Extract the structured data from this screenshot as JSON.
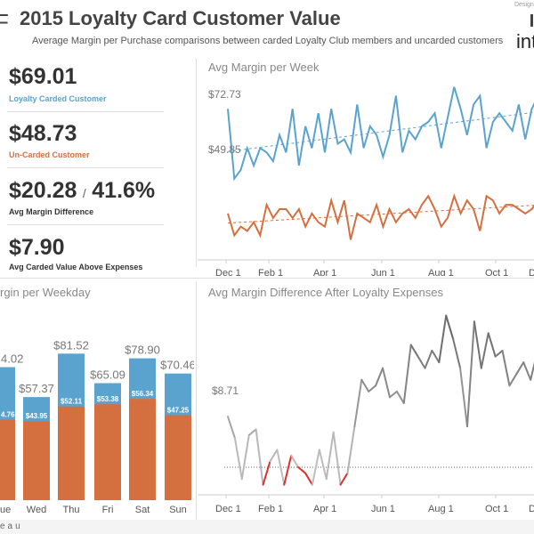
{
  "header": {
    "title": "2015 Loyalty Card Customer Value",
    "subtitle": "Average Margin per Purchase comparisons between carded Loyalty Club members and uncarded customers",
    "left_logo": "F",
    "designed_by": "Design",
    "brand": "inte",
    "footer_text": "eau"
  },
  "kpis": {
    "carded_value": "$69.01",
    "carded_label": "Loyalty Carded Customer",
    "uncarded_value": "$48.73",
    "uncarded_label": "Un-Carded Customer",
    "diff_value": "$20.28",
    "diff_sep": "/",
    "diff_pct": "41.6%",
    "diff_label": "Avg Margin Difference",
    "above_value": "$7.90",
    "above_label": "Avg Carded Value Above Expenses"
  },
  "colors": {
    "carded": "#5ba3cf",
    "uncarded": "#d4703f",
    "diff_line": "#888888",
    "negative": "#e03030"
  },
  "chart_data": [
    {
      "type": "line",
      "title": "Avg Margin per Week",
      "x_tick_labels": [
        "Dec 1",
        "Feb 1",
        "Apr 1",
        "Jun 1",
        "Aug 1",
        "Oct 1",
        "D"
      ],
      "annotations": [
        "$72.73",
        "$49.85"
      ],
      "ylim": [
        40,
        80
      ],
      "series": [
        {
          "name": "Loyalty Carded Customer",
          "values": [
            73,
            57,
            59,
            64,
            60,
            64,
            63,
            61,
            67,
            63,
            73,
            60,
            69,
            64,
            72,
            63,
            73,
            65,
            66,
            63,
            74,
            64,
            69,
            67,
            62,
            67,
            76,
            63,
            68,
            66,
            69,
            70,
            72,
            64,
            71,
            78,
            73,
            67,
            74,
            76,
            64,
            70,
            72,
            70,
            68,
            74,
            66,
            73,
            76,
            71
          ]
        },
        {
          "name": "Un-Carded Customer",
          "values": [
            49,
            44,
            46,
            45,
            47,
            44,
            51,
            48,
            50,
            50,
            48,
            50,
            46,
            49,
            47,
            46,
            52,
            47,
            52,
            43,
            49,
            48,
            47,
            51,
            46,
            50,
            47,
            49,
            50,
            48,
            51,
            53,
            50,
            46,
            48,
            53,
            49,
            52,
            50,
            45,
            53,
            52,
            49,
            51,
            51,
            50,
            49,
            50,
            52,
            53
          ]
        }
      ]
    },
    {
      "type": "bar",
      "title": "rgin per Weekday",
      "categories": [
        "ue",
        "Wed",
        "Thu",
        "Fri",
        "Sat",
        "Sun"
      ],
      "ylim": [
        0,
        90
      ],
      "series": [
        {
          "name": "Loyalty Carded Customer total",
          "values": [
            74.02,
            57.37,
            81.52,
            65.09,
            78.9,
            70.46
          ],
          "labels": [
            "4.02",
            "$57.37",
            "$81.52",
            "$65.09",
            "$78.90",
            "$70.46"
          ]
        },
        {
          "name": "Un-Carded Customer",
          "values": [
            44.76,
            43.95,
            52.11,
            53.38,
            56.34,
            47.25
          ],
          "labels": [
            "4.76",
            "$43.95",
            "$52.11",
            "$53.38",
            "$56.34",
            "$47.25"
          ]
        }
      ]
    },
    {
      "type": "line",
      "title": "Avg Margin Difference After Loyalty Expenses",
      "x_tick_labels": [
        "Dec 1",
        "Feb 1",
        "Apr 1",
        "Jun 1",
        "Aug 1",
        "Oct 1",
        "D"
      ],
      "annotations": [
        "$8.71"
      ],
      "baseline": 0,
      "ylim": [
        -5,
        30
      ],
      "series": [
        {
          "name": "Avg Margin Difference",
          "values": [
            8.7,
            5,
            -2,
            5.5,
            6.5,
            -3,
            1,
            3,
            -3,
            2,
            0,
            -1,
            -3,
            3,
            -2,
            6,
            -3,
            -1,
            7,
            15,
            13,
            14,
            17,
            12,
            13,
            11,
            21,
            19,
            17,
            20,
            18,
            26,
            22,
            17,
            7,
            25,
            17,
            23,
            19,
            20,
            14,
            16,
            18,
            15,
            20,
            19
          ]
        }
      ]
    }
  ]
}
